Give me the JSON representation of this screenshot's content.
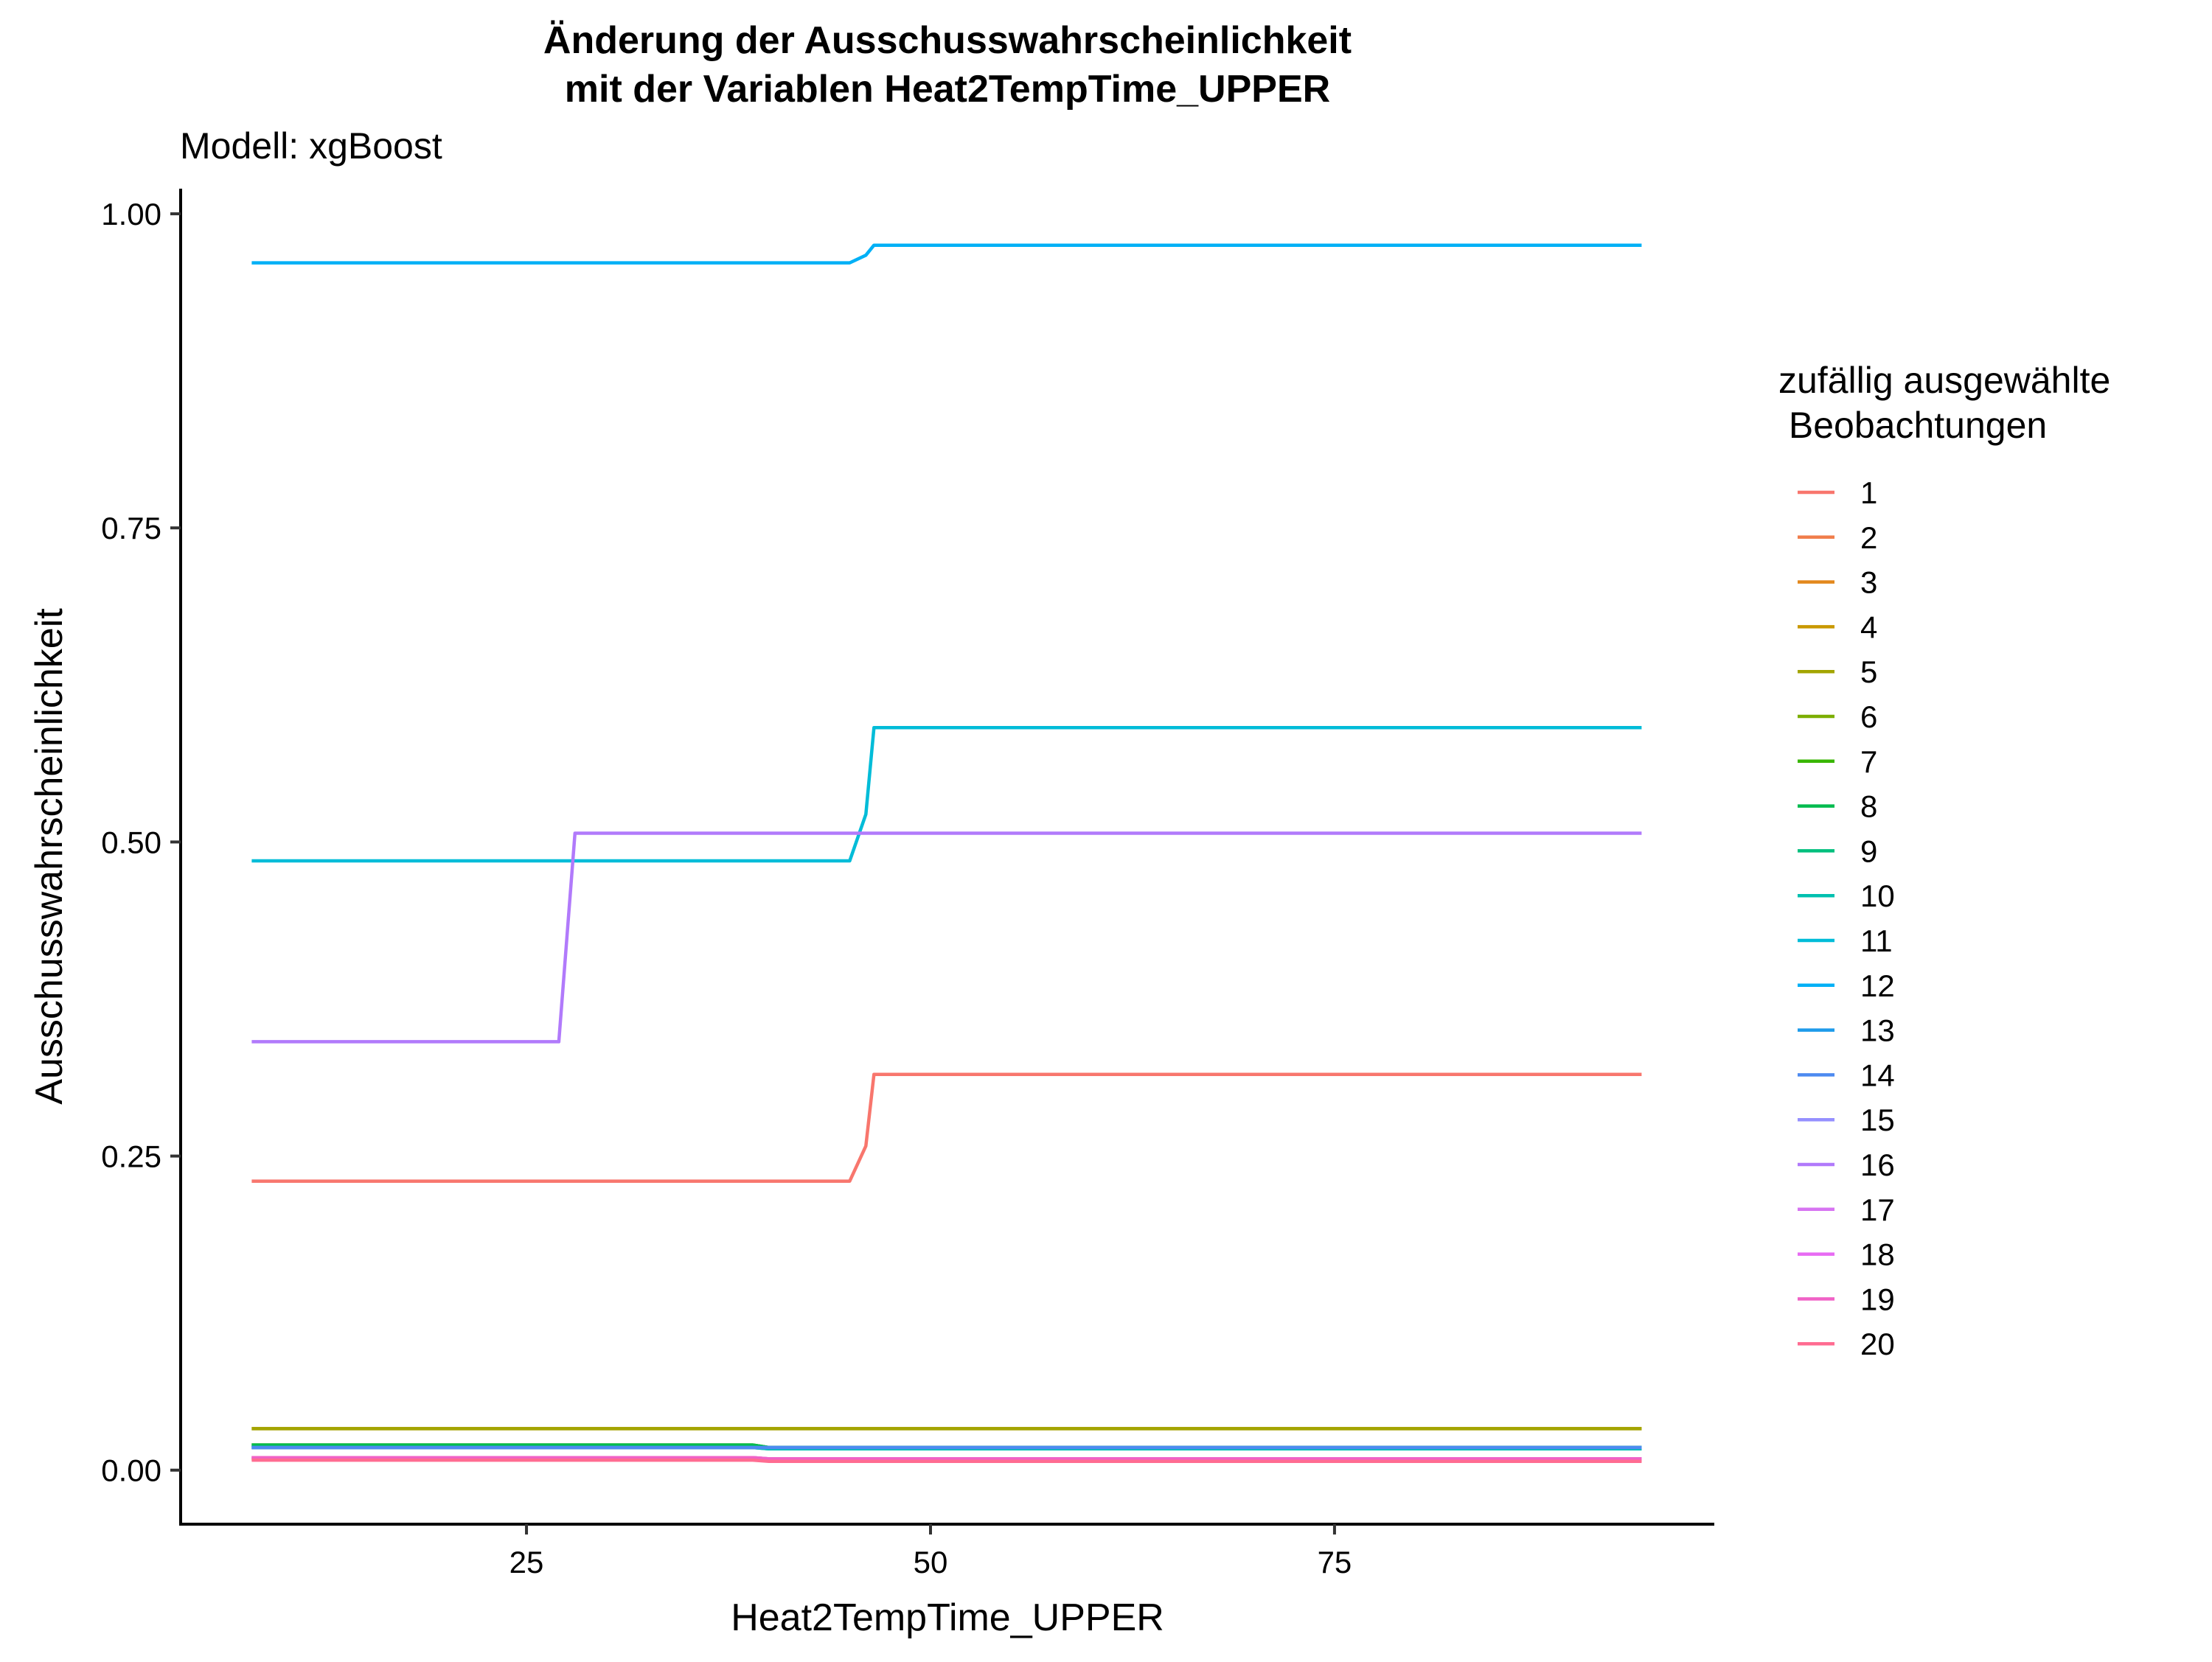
{
  "chart_data": {
    "type": "line",
    "title": "Änderung der Ausschusswahrscheinlichkeit",
    "title_line2": "mit der Variablen Heat2TempTime_UPPER",
    "subtitle": "Modell: xgBoost",
    "xlabel": "Heat2TempTime_UPPER",
    "ylabel": "Ausschusswahrscheinlichkeit",
    "xlim": [
      3.6,
      98.5
    ],
    "ylim": [
      -0.043,
      1.02
    ],
    "x_ticks": [
      25,
      50,
      75
    ],
    "x_tick_labels": [
      "25",
      "50",
      "75"
    ],
    "y_ticks": [
      0,
      0.25,
      0.5,
      0.75,
      1
    ],
    "y_tick_labels": [
      "0.00",
      "0.25",
      "0.50",
      "0.75",
      "1.00"
    ],
    "grid": false,
    "legend_title_line1": "zufällig ausgewählte",
    "legend_title_line2": " Beobachtungen",
    "legend_position": "right",
    "series": [
      {
        "name": "1",
        "color": "#F8766D",
        "x": [
          8,
          39,
          45,
          46,
          46.5,
          94
        ],
        "y": [
          0.23,
          0.23,
          0.23,
          0.258,
          0.315,
          0.315
        ]
      },
      {
        "name": "2",
        "color": "#F07E4C",
        "x": [
          8,
          39,
          40,
          94
        ],
        "y": [
          0.009,
          0.009,
          0.008,
          0.008
        ]
      },
      {
        "name": "3",
        "color": "#E3881D",
        "x": [
          8,
          39,
          40,
          94
        ],
        "y": [
          0.009,
          0.009,
          0.008,
          0.008
        ]
      },
      {
        "name": "4",
        "color": "#C99800",
        "x": [
          8,
          94
        ],
        "y": [
          0.033,
          0.033
        ]
      },
      {
        "name": "5",
        "color": "#A3A500",
        "x": [
          8,
          94
        ],
        "y": [
          0.033,
          0.033
        ]
      },
      {
        "name": "6",
        "color": "#7CAE00",
        "x": [
          8,
          39,
          40,
          94
        ],
        "y": [
          0.02,
          0.02,
          0.018,
          0.018
        ]
      },
      {
        "name": "7",
        "color": "#39B600",
        "x": [
          8,
          39,
          40,
          94
        ],
        "y": [
          0.02,
          0.02,
          0.018,
          0.018
        ]
      },
      {
        "name": "8",
        "color": "#00BB4E",
        "x": [
          8,
          39,
          40,
          94
        ],
        "y": [
          0.02,
          0.02,
          0.018,
          0.018
        ]
      },
      {
        "name": "9",
        "color": "#00BF7D",
        "x": [
          8,
          39,
          40,
          94
        ],
        "y": [
          0.018,
          0.018,
          0.017,
          0.017
        ]
      },
      {
        "name": "10",
        "color": "#00C0AF",
        "x": [
          8,
          39,
          40,
          94
        ],
        "y": [
          0.018,
          0.018,
          0.017,
          0.017
        ]
      },
      {
        "name": "11",
        "color": "#00BCD8",
        "x": [
          8,
          39,
          45,
          46,
          46.5,
          94
        ],
        "y": [
          0.485,
          0.485,
          0.485,
          0.522,
          0.591,
          0.591
        ]
      },
      {
        "name": "12",
        "color": "#00B0F6",
        "x": [
          8,
          39,
          45,
          46,
          46.5,
          94
        ],
        "y": [
          0.961,
          0.961,
          0.961,
          0.967,
          0.975,
          0.975
        ]
      },
      {
        "name": "13",
        "color": "#1E9BEA",
        "x": [
          8,
          39,
          40,
          94
        ],
        "y": [
          0.018,
          0.018,
          0.018,
          0.018
        ]
      },
      {
        "name": "14",
        "color": "#4D8AF0",
        "x": [
          8,
          39,
          40,
          94
        ],
        "y": [
          0.018,
          0.018,
          0.018,
          0.018
        ]
      },
      {
        "name": "15",
        "color": "#9590FF",
        "x": [
          8,
          39,
          40,
          94
        ],
        "y": [
          0.01,
          0.01,
          0.009,
          0.009
        ]
      },
      {
        "name": "16",
        "color": "#B17AFB",
        "x": [
          8,
          27,
          28,
          94
        ],
        "y": [
          0.341,
          0.341,
          0.507,
          0.507
        ]
      },
      {
        "name": "17",
        "color": "#D774F2",
        "x": [
          8,
          39,
          40,
          94
        ],
        "y": [
          0.01,
          0.01,
          0.009,
          0.009
        ]
      },
      {
        "name": "18",
        "color": "#E76BF3",
        "x": [
          8,
          39,
          40,
          94
        ],
        "y": [
          0.01,
          0.01,
          0.009,
          0.009
        ]
      },
      {
        "name": "19",
        "color": "#F062C6",
        "x": [
          8,
          39,
          40,
          94
        ],
        "y": [
          0.01,
          0.01,
          0.009,
          0.009
        ]
      },
      {
        "name": "20",
        "color": "#FF6C91",
        "x": [
          8,
          39,
          40,
          94
        ],
        "y": [
          0.008,
          0.008,
          0.007,
          0.007
        ]
      }
    ]
  }
}
